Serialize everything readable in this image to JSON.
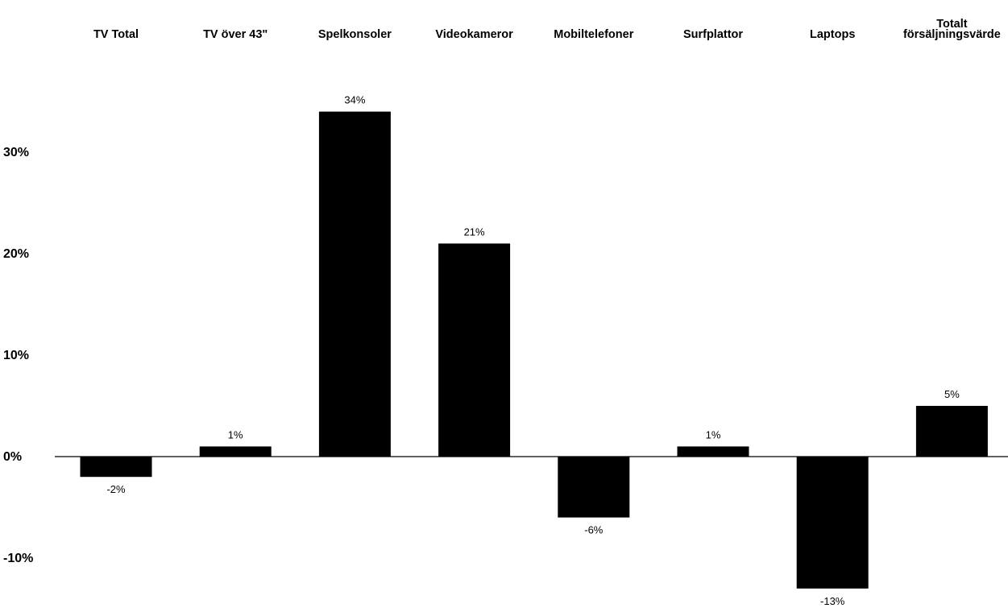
{
  "chart_data": {
    "type": "bar",
    "title": "",
    "xlabel": "",
    "ylabel": "",
    "categories": [
      [
        "TV Total"
      ],
      [
        "TV över 43\""
      ],
      [
        "Spelkonsoler"
      ],
      [
        "Videokameror"
      ],
      [
        "Mobiltelefoner"
      ],
      [
        "Surfplattor"
      ],
      [
        "Laptops"
      ],
      [
        "Totalt",
        "försäljningsvärde"
      ]
    ],
    "values": [
      -2,
      1,
      34,
      21,
      -6,
      1,
      -13,
      5
    ],
    "data_labels": [
      "-2%",
      "1%",
      "34%",
      "21%",
      "-6%",
      "1%",
      "-13%",
      "5%"
    ],
    "ylim": [
      -14,
      36
    ],
    "yticks": [
      -10,
      0,
      10,
      20,
      30
    ],
    "ytick_labels": [
      "-10%",
      "0%",
      "10%",
      "20%",
      "30%"
    ],
    "grid": false,
    "legend": "none",
    "category_axis_position": "top",
    "bar_color": "#000000",
    "axis_color": "#000000"
  }
}
